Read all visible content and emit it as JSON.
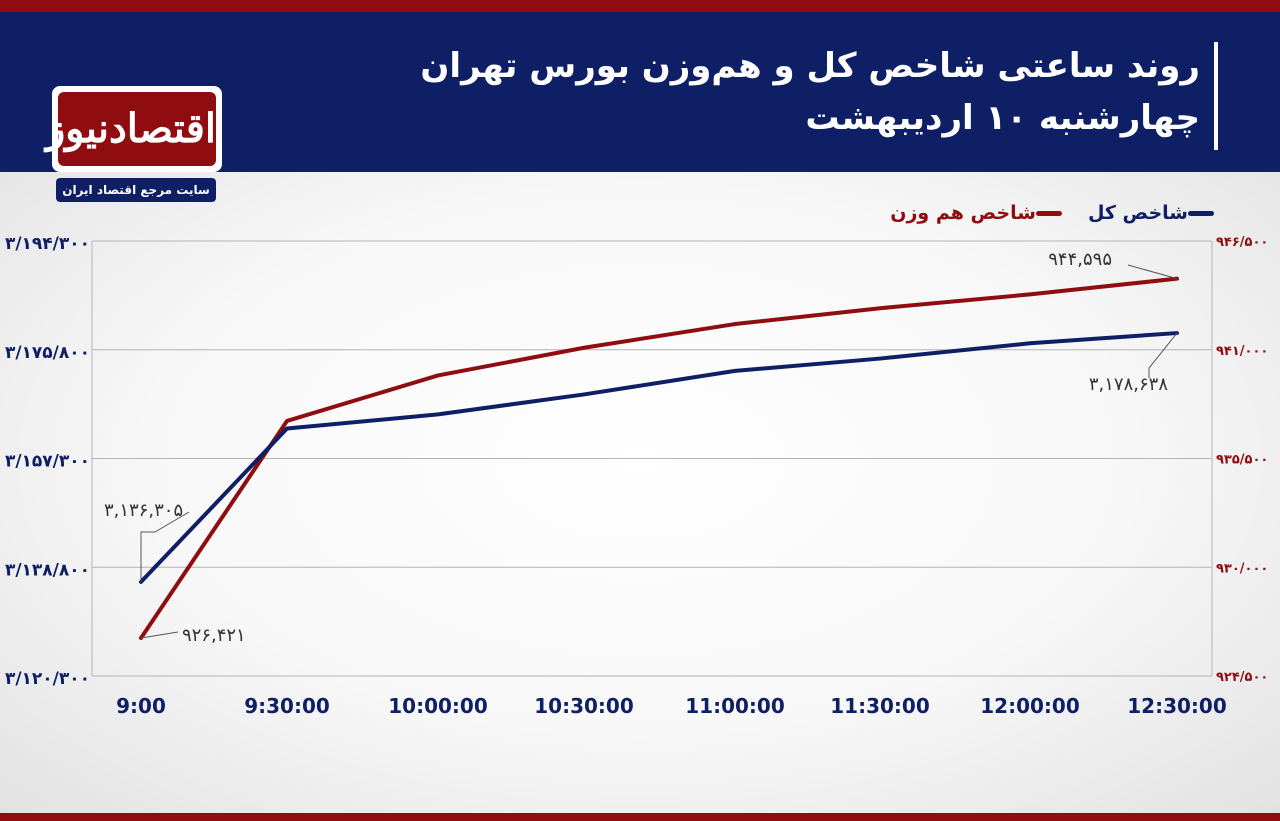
{
  "header": {
    "title_line1": "روند ساعتی شاخص کل و هم‌وزن بورس تهران",
    "title_line2": "چهارشنبه ۱۰ اردیبهشت"
  },
  "logo": {
    "name": "اقتصادنیوز",
    "tagline": "سایت مرجع اقتصاد ایران"
  },
  "colors": {
    "brand_red": "#8f0d10",
    "brand_navy": "#0f1f66",
    "series_total": "#0f1f66",
    "series_equal": "#8f0d10"
  },
  "chart_data": {
    "type": "line",
    "title": "",
    "xlabel": "",
    "ylabel": "",
    "categories": [
      "9:00",
      "9:30:00",
      "10:00:00",
      "10:30:00",
      "11:00:00",
      "11:30:00",
      "12:00:00",
      "12:30:00"
    ],
    "y_left": {
      "lim": [
        3120300,
        3194300
      ],
      "ticks": [
        3120300,
        3138800,
        3157300,
        3175800,
        3194300
      ],
      "tick_labels": [
        "۳/۱۲۰/۳۰۰",
        "۳/۱۳۸/۸۰۰",
        "۳/۱۵۷/۳۰۰",
        "۳/۱۷۵/۸۰۰",
        "۳/۱۹۴/۳۰۰"
      ]
    },
    "y_right": {
      "lim": [
        924500,
        946500
      ],
      "ticks": [
        924500,
        930000,
        935500,
        941000,
        946500
      ],
      "tick_labels": [
        "۹۲۴/۵۰۰",
        "۹۳۰/۰۰۰",
        "۹۳۵/۵۰۰",
        "۹۴۱/۰۰۰",
        "۹۴۶/۵۰۰"
      ]
    },
    "grid": true,
    "legend_position": "top-right",
    "series": [
      {
        "name": "شاخص کل",
        "axis": "left",
        "color": "#0f1f66",
        "values": [
          3136305,
          3162400,
          3164800,
          3168200,
          3172200,
          3174300,
          3176900,
          3178638
        ]
      },
      {
        "name": "شاخص هم وزن",
        "axis": "right",
        "color": "#8f0d10",
        "values": [
          926421,
          937400,
          939700,
          941100,
          942300,
          943100,
          943800,
          944595
        ]
      }
    ],
    "annotations": [
      {
        "series": 0,
        "index": 0,
        "text": "۳,۱۳۶,۳۰۵"
      },
      {
        "series": 0,
        "index": 7,
        "text": "۳,۱۷۸,۶۳۸"
      },
      {
        "series": 1,
        "index": 0,
        "text": "۹۲۶,۴۲۱"
      },
      {
        "series": 1,
        "index": 7,
        "text": "۹۴۴,۵۹۵"
      }
    ]
  }
}
